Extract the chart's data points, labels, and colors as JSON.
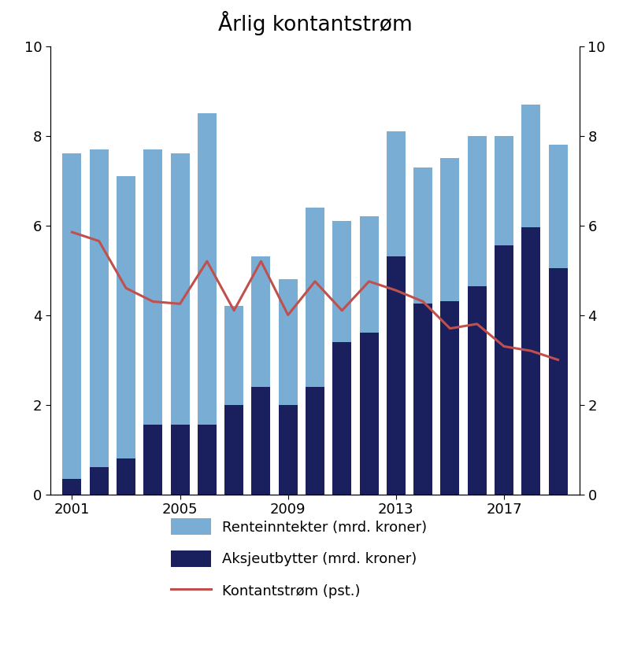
{
  "title_text": "Årlig kontantstrøm",
  "years": [
    2001,
    2002,
    2003,
    2004,
    2005,
    2006,
    2007,
    2008,
    2009,
    2010,
    2011,
    2012,
    2013,
    2014,
    2015,
    2016,
    2017,
    2018,
    2019
  ],
  "total_bar": [
    7.6,
    7.7,
    7.1,
    7.7,
    7.6,
    8.5,
    4.2,
    5.3,
    4.8,
    6.4,
    6.1,
    6.2,
    8.1,
    7.3,
    7.5,
    8.0,
    8.0,
    8.7,
    7.8
  ],
  "aksjeutbytter": [
    0.35,
    0.6,
    0.8,
    1.55,
    1.55,
    1.55,
    2.0,
    2.4,
    2.0,
    2.4,
    3.4,
    3.6,
    5.3,
    4.25,
    4.3,
    4.65,
    5.55,
    5.95,
    5.05
  ],
  "kontantstrom": [
    5.85,
    5.65,
    4.6,
    4.3,
    4.25,
    5.2,
    4.1,
    5.2,
    4.0,
    4.75,
    4.1,
    4.75,
    4.55,
    4.3,
    3.7,
    3.8,
    3.3,
    3.2,
    3.0
  ],
  "bar_color_rente": "#7aadd4",
  "bar_color_aksje": "#1a1f5e",
  "line_color": "#c0504d",
  "ylim": [
    0,
    10
  ],
  "yticks": [
    0,
    2,
    4,
    6,
    8,
    10
  ],
  "xticks": [
    2001,
    2005,
    2009,
    2013,
    2017
  ],
  "legend_rente": "Renteinntekter (mrd. kroner)",
  "legend_aksje": "Aksjeutbytter (mrd. kroner)",
  "legend_line": "Kontantstrøm (pst.)",
  "figsize": [
    8.0,
    8.38
  ],
  "dpi": 100
}
